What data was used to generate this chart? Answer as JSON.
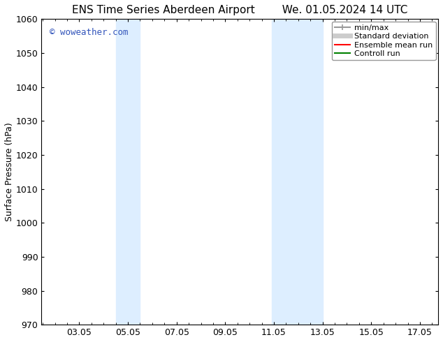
{
  "title_left": "ENS Time Series Aberdeen Airport",
  "title_right": "We. 01.05.2024 14 UTC",
  "ylabel": "Surface Pressure (hPa)",
  "ylim": [
    970,
    1060
  ],
  "yticks": [
    970,
    980,
    990,
    1000,
    1010,
    1020,
    1030,
    1040,
    1050,
    1060
  ],
  "xlim_start": 1.5,
  "xlim_end": 17.8,
  "xtick_labels": [
    "03.05",
    "05.05",
    "07.05",
    "09.05",
    "11.05",
    "13.05",
    "15.05",
    "17.05"
  ],
  "xtick_positions": [
    3.05,
    5.05,
    7.05,
    9.05,
    11.05,
    13.05,
    15.05,
    17.05
  ],
  "shaded_bands": [
    {
      "x_start": 4.55,
      "x_end": 5.55
    },
    {
      "x_start": 10.95,
      "x_end": 13.05
    }
  ],
  "shaded_color": "#ddeeff",
  "watermark_text": "© woweather.com",
  "watermark_color": "#3355bb",
  "legend_items": [
    {
      "label": "min/max",
      "color": "#999999",
      "linestyle": "-",
      "linewidth": 1.5
    },
    {
      "label": "Standard deviation",
      "color": "#cccccc",
      "linestyle": "-",
      "linewidth": 5
    },
    {
      "label": "Ensemble mean run",
      "color": "red",
      "linestyle": "-",
      "linewidth": 1.5
    },
    {
      "label": "Controll run",
      "color": "green",
      "linestyle": "-",
      "linewidth": 1.5
    }
  ],
  "bg_color": "#ffffff",
  "plot_bg_color": "#ffffff",
  "title_fontsize": 11,
  "ylabel_fontsize": 9,
  "tick_fontsize": 9,
  "legend_fontsize": 8,
  "watermark_fontsize": 9
}
